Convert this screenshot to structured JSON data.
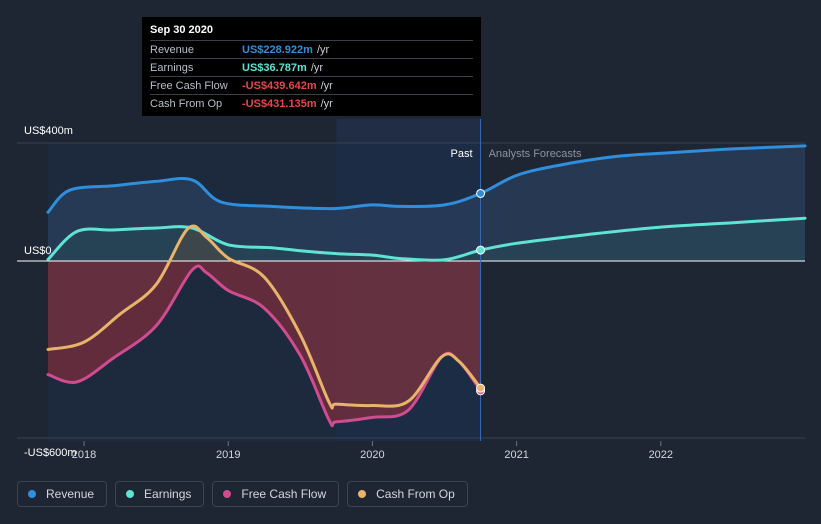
{
  "tooltip": {
    "date": "Sep 30 2020",
    "rows": [
      {
        "label": "Revenue",
        "value": "US$228.922m",
        "unit": "/yr",
        "color": "#2f8fdc"
      },
      {
        "label": "Earnings",
        "value": "US$36.787m",
        "unit": "/yr",
        "color": "#5fe3d2"
      },
      {
        "label": "Free Cash Flow",
        "value": "-US$439.642m",
        "unit": "/yr",
        "color": "#e5474b"
      },
      {
        "label": "Cash From Op",
        "value": "-US$431.135m",
        "unit": "/yr",
        "color": "#e5474b"
      }
    ]
  },
  "labels": {
    "past": "Past",
    "forecast": "Analysts Forecasts"
  },
  "legend": [
    {
      "label": "Revenue",
      "color": "#2f8fdc"
    },
    {
      "label": "Earnings",
      "color": "#5fe3d2"
    },
    {
      "label": "Free Cash Flow",
      "color": "#d14b8f"
    },
    {
      "label": "Cash From Op",
      "color": "#e8b46a"
    }
  ],
  "chart_data": {
    "type": "line",
    "title": "",
    "xlabel": "",
    "ylabel": "",
    "y_tick_labels": [
      "US$400m",
      "US$0",
      "-US$600m"
    ],
    "y_ticks": [
      400,
      0,
      -600
    ],
    "ylim": [
      -600,
      400
    ],
    "x_tick_labels": [
      "2018",
      "2019",
      "2020",
      "2021",
      "2022"
    ],
    "x_ticks": [
      2018,
      2019,
      2020,
      2021,
      2022
    ],
    "xlim": [
      2017.75,
      2023.0
    ],
    "past_end": 2020.75,
    "highlight_start": 2019.75,
    "series": [
      {
        "name": "Revenue",
        "color": "#2f8fdc",
        "x": [
          2017.75,
          2017.9,
          2018.2,
          2018.5,
          2018.75,
          2018.95,
          2019.3,
          2019.5,
          2019.75,
          2020.0,
          2020.2,
          2020.5,
          2020.75,
          2021.0,
          2021.3,
          2021.7,
          2022.0,
          2022.5,
          2023.0
        ],
        "y": [
          165,
          240,
          255,
          270,
          275,
          200,
          185,
          180,
          178,
          190,
          185,
          190,
          229,
          290,
          325,
          355,
          365,
          380,
          390
        ]
      },
      {
        "name": "Earnings",
        "color": "#5fe3d2",
        "x": [
          2017.75,
          2017.95,
          2018.2,
          2018.5,
          2018.75,
          2019.0,
          2019.3,
          2019.5,
          2019.75,
          2020.0,
          2020.2,
          2020.5,
          2020.75,
          2021.0,
          2021.5,
          2022.0,
          2022.5,
          2023.0
        ],
        "y": [
          5,
          100,
          105,
          112,
          112,
          55,
          45,
          35,
          25,
          20,
          8,
          4,
          37,
          60,
          90,
          115,
          130,
          145
        ]
      },
      {
        "name": "Free Cash Flow",
        "color": "#d14b8f",
        "x": [
          2017.75,
          2017.95,
          2018.2,
          2018.5,
          2018.75,
          2018.85,
          2019.0,
          2019.25,
          2019.5,
          2019.7,
          2019.75,
          2020.0,
          2020.25,
          2020.48,
          2020.6,
          2020.75
        ],
        "y": [
          -385,
          -410,
          -330,
          -220,
          -30,
          -40,
          -100,
          -160,
          -320,
          -540,
          -545,
          -530,
          -505,
          -325,
          -340,
          -440
        ]
      },
      {
        "name": "Cash From Op",
        "color": "#e8b46a",
        "x": [
          2017.75,
          2018.0,
          2018.25,
          2018.5,
          2018.72,
          2018.85,
          2019.0,
          2019.25,
          2019.5,
          2019.7,
          2019.75,
          2020.0,
          2020.25,
          2020.48,
          2020.6,
          2020.75
        ],
        "y": [
          -300,
          -275,
          -180,
          -80,
          110,
          80,
          10,
          -55,
          -250,
          -480,
          -485,
          -490,
          -475,
          -325,
          -340,
          -431
        ]
      }
    ]
  }
}
